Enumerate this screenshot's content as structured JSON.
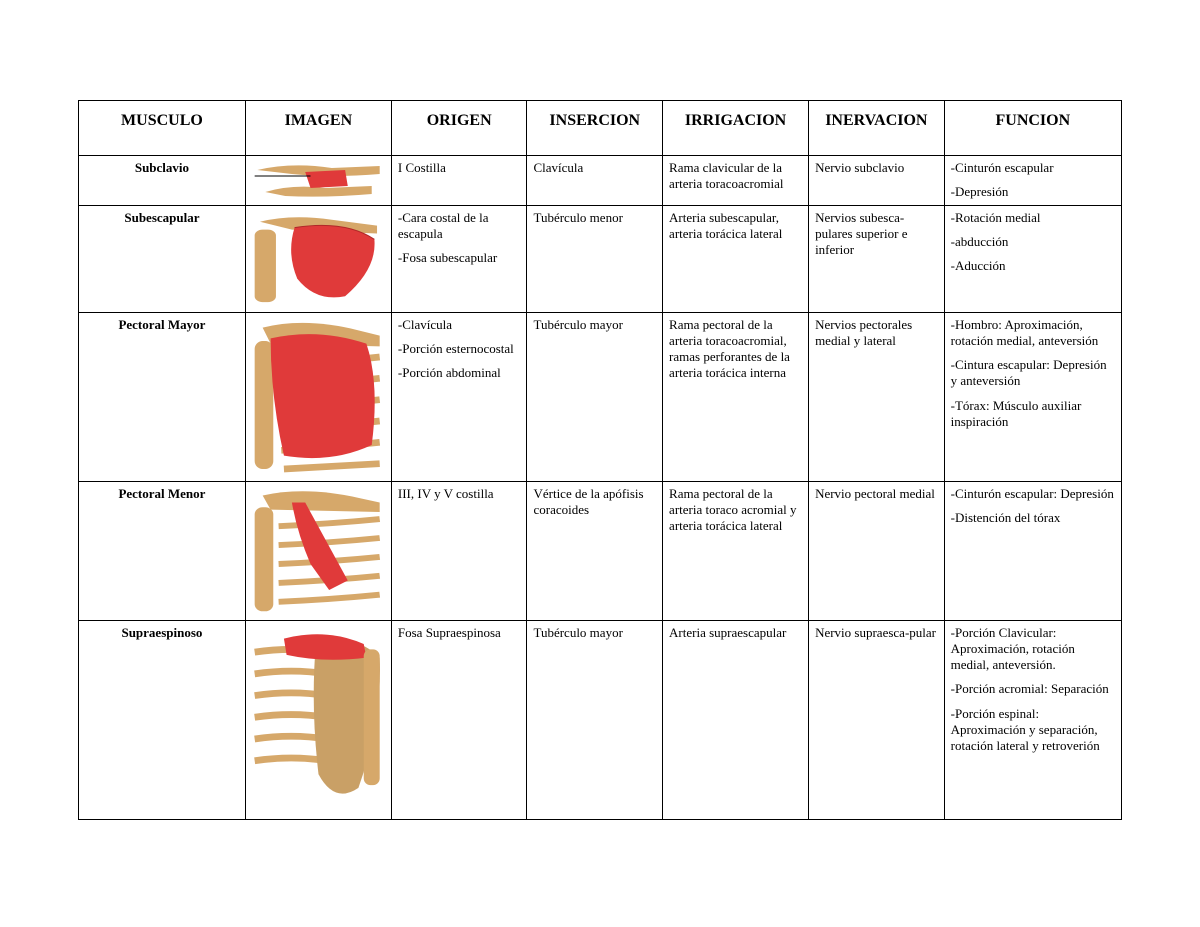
{
  "style": {
    "page_bg": "#ffffff",
    "text_color": "#000000",
    "border_color": "#000000",
    "font_family": "Times New Roman",
    "header_fontsize_pt": 12,
    "body_fontsize_pt": 10,
    "muscle_name_fontsize_pt": 11,
    "bone_color": "#d6a86a",
    "muscle_highlight_color": "#e03a3a",
    "image_bg": "#ffffff",
    "col_widths_pct": [
      16,
      14,
      13,
      13,
      14,
      13,
      17
    ]
  },
  "table": {
    "columns": [
      "MUSCULO",
      "IMAGEN",
      "ORIGEN",
      "INSERCION",
      "IRRIGACION",
      "INERVACION",
      "FUNCION"
    ],
    "rows": [
      {
        "key": "subclavio",
        "musculo": "Subclavio",
        "imagen_alt": "subclavio-illustration",
        "origen": [
          "I Costilla"
        ],
        "insercion": [
          "Clavícula"
        ],
        "irrigacion": [
          "Rama clavicular de la arteria toracoacromial"
        ],
        "inervacion": [
          "Nervio subclavio"
        ],
        "funcion": [
          "-Cinturón escapular",
          "-Depresión"
        ]
      },
      {
        "key": "subescapular",
        "musculo": "Subescapular",
        "imagen_alt": "subescapular-illustration",
        "origen": [
          "-Cara costal de la escapula",
          "-Fosa subescapular"
        ],
        "insercion": [
          "Tubérculo menor"
        ],
        "irrigacion": [
          "Arteria subescapular, arteria torácica lateral"
        ],
        "inervacion": [
          "Nervios subesca-pulares superior e inferior"
        ],
        "funcion": [
          "-Rotación medial",
          "-abducción",
          "-Aducción"
        ]
      },
      {
        "key": "pectoral-mayor",
        "musculo": "Pectoral Mayor",
        "imagen_alt": "pectoral-mayor-illustration",
        "origen": [
          "-Clavícula",
          "-Porción esternocostal",
          "-Porción abdominal"
        ],
        "insercion": [
          "Tubérculo mayor"
        ],
        "irrigacion": [
          "Rama pectoral de la arteria toracoacromial, ramas perforantes de la arteria torácica interna"
        ],
        "inervacion": [
          "Nervios pectorales medial y lateral"
        ],
        "funcion": [
          "-Hombro: Aproximación, rotación medial, anteversión",
          "-Cintura escapular: Depresión y anteversión",
          "-Tórax: Músculo auxiliar inspiración"
        ]
      },
      {
        "key": "pectoral-menor",
        "musculo": "Pectoral Menor",
        "imagen_alt": "pectoral-menor-illustration",
        "origen": [
          "III, IV y V costilla"
        ],
        "insercion": [
          "Vértice de la apófisis coracoides"
        ],
        "irrigacion": [
          "Rama pectoral de la arteria toraco acromial y arteria torácica lateral"
        ],
        "inervacion": [
          "Nervio pectoral medial"
        ],
        "funcion": [
          "-Cinturón escapular: Depresión",
          "-Distención del tórax"
        ]
      },
      {
        "key": "supraespinoso",
        "musculo": "Supraespinoso",
        "imagen_alt": "supraespinoso-illustration",
        "origen": [
          "Fosa Supraespinosa"
        ],
        "insercion": [
          "Tubérculo mayor"
        ],
        "irrigacion": [
          "Arteria supraescapular"
        ],
        "inervacion": [
          "Nervio supraesca-pular"
        ],
        "funcion": [
          "-Porción Clavicular: Aproximación, rotación medial, anteversión.",
          "-Porción acromial: Separación",
          "-Porción espinal: Aproximación y separación, rotación lateral y retroverión"
        ]
      }
    ]
  }
}
